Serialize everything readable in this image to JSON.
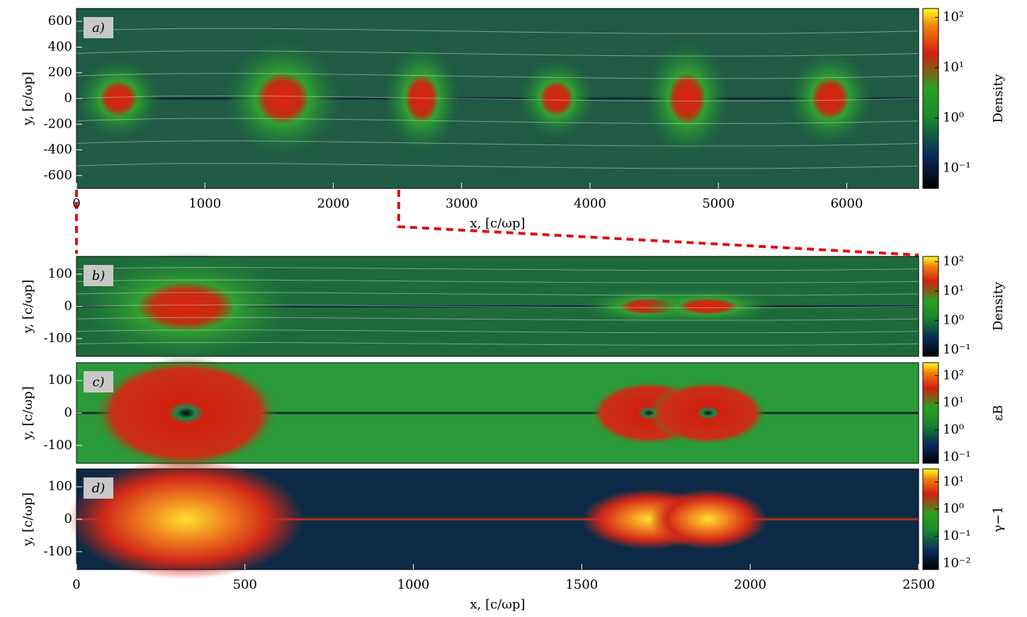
{
  "chart_data": [
    {
      "type": "heatmap",
      "panel_label": "a)",
      "xlabel": "x, [c/ωp]",
      "ylabel": "y, [c/ωp]",
      "xlim": [
        0,
        6560
      ],
      "xticks": [
        0,
        1000,
        2000,
        3000,
        4000,
        5000,
        6000
      ],
      "ylim": [
        -700,
        700
      ],
      "yticks": [
        -600,
        -400,
        -200,
        0,
        200,
        400,
        600
      ],
      "colorbar": {
        "label": "Density",
        "scale": "log",
        "lim": [
          0.04,
          150
        ],
        "ticks": [
          {
            "value": 0.1,
            "label": "10⁻¹"
          },
          {
            "value": 1,
            "label": "10⁰"
          },
          {
            "value": 10,
            "label": "10¹"
          },
          {
            "value": 100,
            "label": "10²"
          }
        ]
      }
    },
    {
      "type": "heatmap",
      "panel_label": "b)",
      "ylabel": "y, [c/ωp]",
      "xlim": [
        0,
        2500
      ],
      "ylim": [
        -155,
        155
      ],
      "yticks": [
        -100,
        0,
        100
      ],
      "colorbar": {
        "label": "Density",
        "scale": "log",
        "lim": [
          0.06,
          150
        ],
        "ticks": [
          {
            "value": 0.1,
            "label": "10⁻¹"
          },
          {
            "value": 1,
            "label": "10⁰"
          },
          {
            "value": 10,
            "label": "10¹"
          },
          {
            "value": 100,
            "label": "10²"
          }
        ]
      }
    },
    {
      "type": "heatmap",
      "panel_label": "c)",
      "ylabel": "y, [c/ωp]",
      "xlim": [
        0,
        2500
      ],
      "ylim": [
        -155,
        155
      ],
      "yticks": [
        -100,
        0,
        100
      ],
      "colorbar": {
        "label": "εB",
        "scale": "log",
        "lim": [
          0.06,
          300
        ],
        "ticks": [
          {
            "value": 0.1,
            "label": "10⁻¹"
          },
          {
            "value": 1,
            "label": "10⁰"
          },
          {
            "value": 10,
            "label": "10¹"
          },
          {
            "value": 100,
            "label": "10²"
          }
        ]
      }
    },
    {
      "type": "heatmap",
      "panel_label": "d)",
      "xlabel": "x, [c/ωp]",
      "ylabel": "y, [c/ωp]",
      "xlim": [
        0,
        2500
      ],
      "xticks": [
        0,
        500,
        1000,
        1500,
        2000,
        2500
      ],
      "ylim": [
        -155,
        155
      ],
      "yticks": [
        -100,
        0,
        100
      ],
      "colorbar": {
        "label": "γ−1",
        "scale": "log",
        "lim": [
          0.006,
          30
        ],
        "ticks": [
          {
            "value": 0.01,
            "label": "10⁻²"
          },
          {
            "value": 0.1,
            "label": "10⁻¹"
          },
          {
            "value": 1,
            "label": "10⁰"
          },
          {
            "value": 10,
            "label": "10¹"
          }
        ]
      }
    }
  ]
}
